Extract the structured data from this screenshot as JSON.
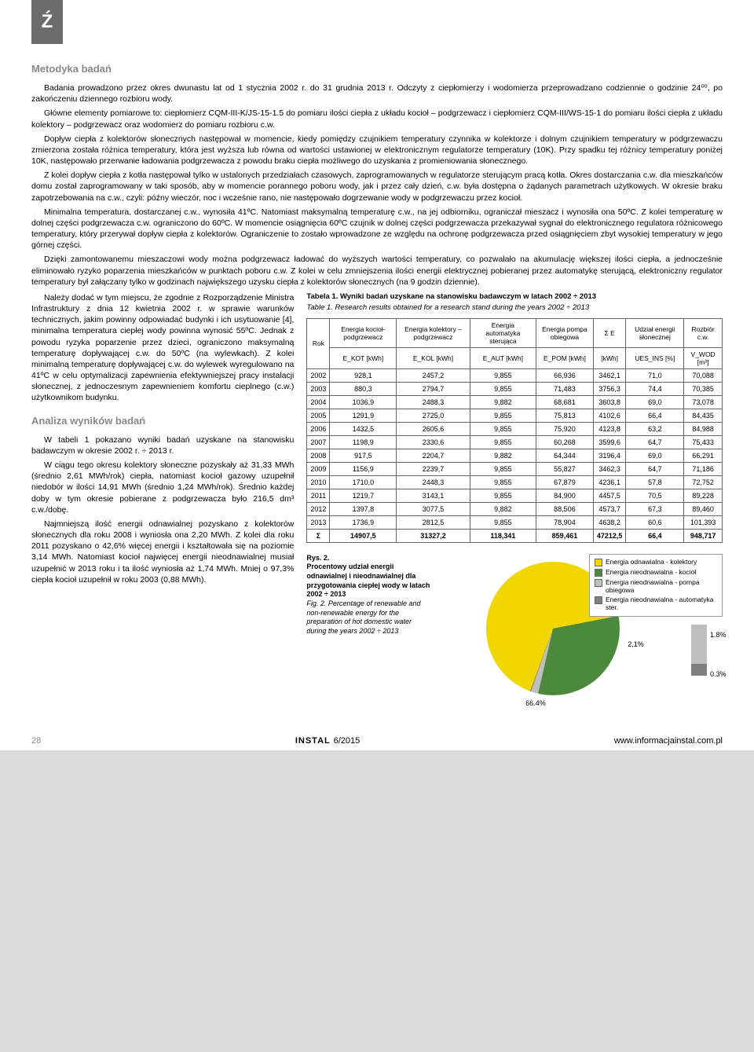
{
  "tab": "Ź",
  "heading1": "Metodyka badań",
  "paragraphs": [
    "Badania prowadzono przez okres dwunastu lat od 1 stycznia 2002 r. do 31 grudnia 2013 r. Odczyty z ciepłomierzy i wodomierza przeprowadzano codziennie o godzinie 24⁰⁰, po zakończeniu dziennego rozbioru wody.",
    "Główne elementy pomiarowe to: ciepłomierz CQM-III-K/JS-15-1.5 do pomiaru ilości ciepła z układu kocioł – podgrzewacz i ciepłomierz CQM-III/WS-15-1 do pomiaru ilości ciepła z układu kolektory – podgrzewacz oraz wodomierz do pomiaru rozbioru c.w.",
    "Dopływ ciepła z kolektorów słonecznych następował w momencie, kiedy pomiędzy czujnikiem temperatury czynnika w kolektorze i dolnym czujnikiem temperatury w podgrzewaczu zmierzona została różnica temperatury, która jest wyższa lub równa od wartości ustawionej w elektronicznym regulatorze temperatury (10K). Przy spadku tej różnicy temperatury poniżej 10K, następowało przerwanie ładowania podgrzewacza z powodu braku ciepła możliwego do uzyskania z promieniowania słonecznego.",
    "Z kolei dopływ ciepła z kotła następował tylko w ustalonych przedziałach czasowych, zaprogramowanych w regulatorze sterującym pracą kotła. Okres dostarczania c.w. dla mieszkańców domu został zaprogramowany w taki sposób, aby w momencie porannego poboru wody, jak i przez cały dzień, c.w. była dostępna o żądanych parametrach użytkowych. W okresie braku zapotrzebowania na c.w., czyli: późny wieczór, noc i wcześnie rano, nie następowało dogrzewanie wody w podgrzewaczu przez kocioł.",
    "Minimalna temperatura, dostarczanej c.w., wynosiła 41ºC. Natomiast maksymalną temperaturę c.w., na jej odbiorniku, ograniczał mieszacz i wynosiła ona 50ºC. Z kolei temperaturę w dolnej części podgrzewacza c.w. ograniczono do 60ºC. W momencie osiągnięcia 60ºC czujnik w dolnej części podgrzewacza przekazywał sygnał do elektronicznego regulatora różnicowego temperatury, który przerywał dopływ ciepła z kolektorów. Ograniczenie to zostało wprowadzone ze względu na ochronę podgrzewacza przed osiągnięciem zbyt wysokiej temperatury w jego górnej części.",
    "Dzięki zamontowanemu mieszaczowi wody można podgrzewacz ładować do wyższych wartości temperatury, co pozwalało na akumulację większej ilości ciepła, a jednocześnie eliminowało ryzyko poparzenia mieszkańców w punktach poboru c.w. Z kolei w celu zmniejszenia ilości energii elektrycznej pobieranej przez automatykę sterującą, elektroniczny regulator temperatury był załączany tylko w godzinach największego uzysku ciepła z kolektorów słonecznych (na 9 godzin dziennie)."
  ],
  "left_paragraphs": [
    "Należy dodać w tym miejscu, że zgodnie z Rozporządzenie Ministra Infrastruktury z dnia 12 kwietnia 2002 r. w sprawie warunków technicznych, jakim powinny odpowiadać budynki i ich usytuowanie [4], minimalna temperatura ciepłej wody powinna wynosić 55ºC. Jednak z powodu ryzyka poparzenie przez dzieci, ograniczono maksymalną temperaturę dopływającej c.w. do 50ºC (na wylewkach). Z kolei minimalną temperaturę dopływającej c.w. do wylewek wyregulowano na 41ºC w celu optymalizacji zapewnienia efektywniejszej pracy instalacji słonecznej, z jednoczesnym zapewnieniem komfortu cieplnego (c.w.) użytkownikom budynku."
  ],
  "heading2": "Analiza wyników badań",
  "analysis_paragraphs": [
    "W tabeli 1 pokazano wyniki badań uzyskane na stanowisku badawczym w okresie 2002 r. ÷ 2013 r.",
    "W ciągu tego okresu kolektory słoneczne pozyskały aż 31,33 MWh (średnio 2,61 MWh/rok) ciepła, natomiast kocioł gazowy uzupełnił niedobór w ilości 14,91 MWh (średnio 1,24 MWh/rok). Średnio każdej doby w tym okresie pobierane z podgrzewacza było 216,5 dm³ c.w./dobę.",
    "Najmniejszą ilość energii odnawialnej pozyskano z kolektorów słonecznych dla roku 2008 i wyniosła ona 2,20 MWh. Z kolei dla roku 2011 pozyskano o 42,6% więcej energii i kształtowała się na poziomie 3,14 MWh. Natomiast kocioł najwięcej energii nieodnawialnej musiał uzupełnić w 2013 roku i ta ilość wyniosła aż 1,74 MWh. Mniej o 97,3% ciepła kocioł uzupełnił w roku 2003 (0,88 MWh)."
  ],
  "table": {
    "caption_pl": "Tabela 1. Wyniki badań uzyskane na stanowisku badawczym w latach 2002 ÷ 2013",
    "caption_en": "Table 1. Research results obtained for a research stand during the years 2002 ÷ 2013",
    "headers_top": [
      "Rok",
      "Energia kocioł-podgrzewacz",
      "Energia kolektory – podgrzewacz",
      "Energia automatyka sterująca",
      "Energia pompa obiegowa",
      "Σ E",
      "Udział energii słonecznej",
      "Rozbiór c.w."
    ],
    "headers_sub": [
      "",
      "E_KOT [kWh]",
      "E_KOL [kWh]",
      "E_AUT [kWh]",
      "E_POM [kWh]",
      "[kWh]",
      "UES_INS [%]",
      "V_WOD [m³]"
    ],
    "rows": [
      [
        "2002",
        "928,1",
        "2457,2",
        "9,855",
        "66,936",
        "3462,1",
        "71,0",
        "70,088"
      ],
      [
        "2003",
        "880,3",
        "2794,7",
        "9,855",
        "71,483",
        "3756,3",
        "74,4",
        "70,385"
      ],
      [
        "2004",
        "1036,9",
        "2488,3",
        "9,882",
        "68,681",
        "3603,8",
        "69,0",
        "73,078"
      ],
      [
        "2005",
        "1291,9",
        "2725,0",
        "9,855",
        "75,813",
        "4102,6",
        "66,4",
        "84,435"
      ],
      [
        "2006",
        "1432,5",
        "2605,6",
        "9,855",
        "75,920",
        "4123,8",
        "63,2",
        "84,988"
      ],
      [
        "2007",
        "1198,9",
        "2330,6",
        "9,855",
        "60,268",
        "3599,6",
        "64,7",
        "75,433"
      ],
      [
        "2008",
        "917,5",
        "2204,7",
        "9,882",
        "64,344",
        "3196,4",
        "69,0",
        "66,291"
      ],
      [
        "2009",
        "1156,9",
        "2239,7",
        "9,855",
        "55,827",
        "3462,3",
        "64,7",
        "71,186"
      ],
      [
        "2010",
        "1710,0",
        "2448,3",
        "9,855",
        "67,879",
        "4236,1",
        "57,8",
        "72,752"
      ],
      [
        "2011",
        "1219,7",
        "3143,1",
        "9,855",
        "84,900",
        "4457,5",
        "70,5",
        "89,228"
      ],
      [
        "2012",
        "1397,8",
        "3077,5",
        "9,882",
        "88,506",
        "4573,7",
        "67,3",
        "89,460"
      ],
      [
        "2013",
        "1736,9",
        "2812,5",
        "9,855",
        "78,904",
        "4638,2",
        "60,6",
        "101,393"
      ]
    ],
    "sum": [
      "Σ",
      "14907,5",
      "31327,2",
      "118,341",
      "859,461",
      "47212,5",
      "66,4",
      "948,717"
    ]
  },
  "figure": {
    "ref": "Rys. 2.",
    "cap_pl": "Procentowy udział energii odnawialnej i nieodnawialnej dla przygotowania ciepłej wody w latach 2002 ÷ 2013",
    "ref_en": "Fig. 2.",
    "cap_en": "Percentage of renewable and non-renewable energy for the preparation of hot domestic water during the years 2002 ÷ 2013",
    "slices": [
      {
        "label": "Energia odnawialna - kolektory",
        "pct": 66.4,
        "color": "#f2d600"
      },
      {
        "label": "Energia nieodnawialna - kocioł",
        "pct": 31.6,
        "color": "#4a8a3a"
      },
      {
        "label": "Energia nieodnawialna - pompa obiegowa",
        "pct": 1.8,
        "color": "#bfbfbf"
      },
      {
        "label": "Energia nieodnawialna - automatyka ster.",
        "pct": 0.3,
        "color": "#7f7f7f"
      }
    ],
    "label_2_1": "2,1%"
  },
  "footer": {
    "page": "28",
    "journal": "INSTAL",
    "issue": "6/2015",
    "site": "www.informacjainstal.com.pl"
  }
}
